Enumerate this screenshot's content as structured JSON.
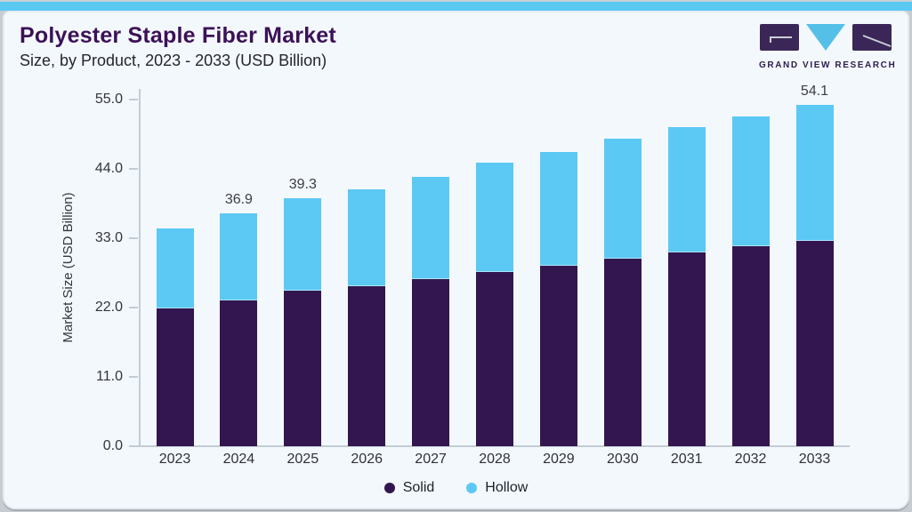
{
  "page": {
    "title": "Polyester Staple Fiber Market",
    "subtitle": "Size, by Product, 2023 - 2033 (USD Billion)"
  },
  "logo": {
    "name": "GRAND VIEW RESEARCH",
    "purple": "#3b2757",
    "blue": "#54c0e8"
  },
  "chart_data": {
    "type": "bar",
    "stacked": true,
    "title": "Polyester Staple Fiber Market Size, by Product, 2023 - 2033 (USD Billion)",
    "categories": [
      "2023",
      "2024",
      "2025",
      "2026",
      "2027",
      "2028",
      "2029",
      "2030",
      "2031",
      "2032",
      "2033"
    ],
    "series": [
      {
        "name": "Solid",
        "color": "#331650",
        "values": [
          21.9,
          23.1,
          24.6,
          25.4,
          26.5,
          27.6,
          28.6,
          29.7,
          30.7,
          31.7,
          32.6
        ]
      },
      {
        "name": "Hollow",
        "color": "#5bc9f4",
        "values": [
          12.7,
          13.8,
          14.7,
          15.4,
          16.2,
          17.3,
          18.0,
          19.0,
          19.9,
          20.6,
          21.5
        ]
      }
    ],
    "totals": [
      34.6,
      36.9,
      39.3,
      40.8,
      42.7,
      44.9,
      46.6,
      48.7,
      50.6,
      52.3,
      54.1
    ],
    "bar_labels": {
      "2024": "36.9",
      "2025": "39.3",
      "2033": "54.1"
    },
    "ylabel": "Market Size (USD Billion)",
    "xlabel": "",
    "ylim": [
      0,
      55
    ],
    "yticks": [
      "0.0",
      "11.0",
      "22.0",
      "33.0",
      "44.0",
      "55.0"
    ],
    "grid": false,
    "legend_position": "bottom"
  },
  "colors": {
    "card_background": "#f3f8fc",
    "top_stripe": "#5bc8f2",
    "title_text": "#3c1157",
    "subtitle_text": "#26262e",
    "axis_text": "#33353d",
    "axis_line": "#c3ccd5",
    "solid_series": "#331650",
    "hollow_series": "#5bc9f4"
  }
}
